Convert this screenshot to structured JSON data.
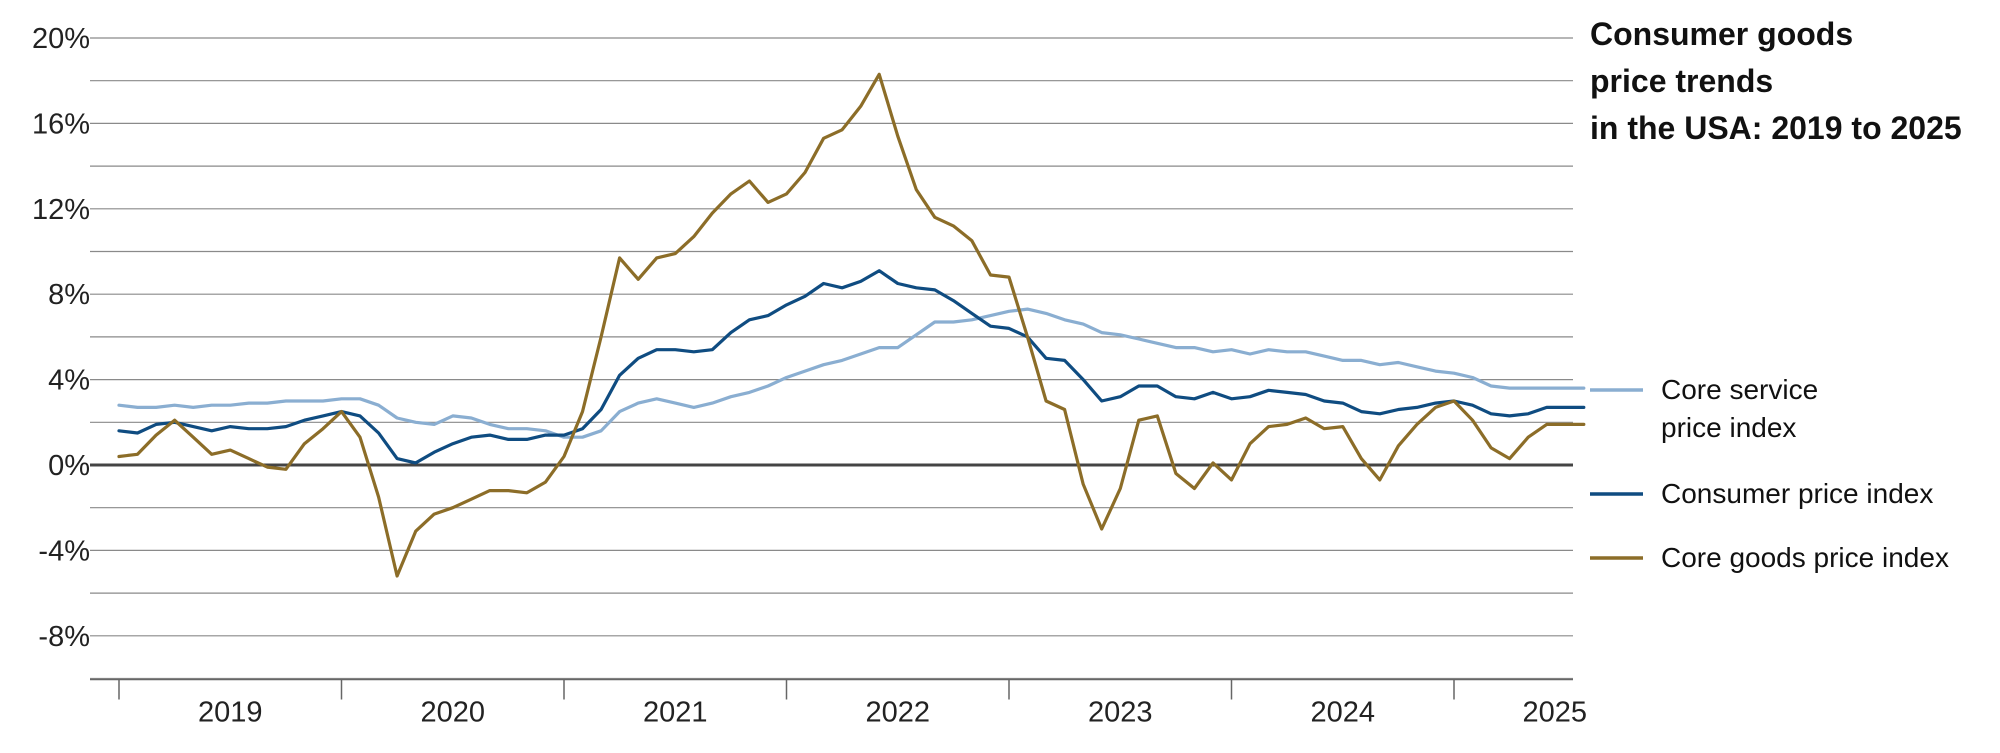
{
  "chart_data": {
    "type": "line",
    "title_lines": [
      "Consumer goods",
      "price trends",
      "in the USA: 2019 to 2025"
    ],
    "xlabel": "",
    "ylabel": "",
    "ylim": [
      -10,
      20
    ],
    "yticks": [
      20,
      16,
      12,
      8,
      4,
      0,
      -4,
      -8
    ],
    "ytick_labels": [
      "20%",
      "16%",
      "12%",
      "8%",
      "4%",
      "0%",
      "-4%",
      "-8%"
    ],
    "xticks": [
      "2019",
      "2020",
      "2021",
      "2022",
      "2023",
      "2024",
      "2025"
    ],
    "grid": true,
    "legend_position": "right",
    "x_start": "2019-01",
    "x_end": "2025-06",
    "series": [
      {
        "name": "Core service price index",
        "color": "#8aaed1",
        "values": [
          2.8,
          2.7,
          2.7,
          2.8,
          2.7,
          2.8,
          2.8,
          2.9,
          2.9,
          3.0,
          3.0,
          3.0,
          3.1,
          3.1,
          2.8,
          2.2,
          2.0,
          1.9,
          2.3,
          2.2,
          1.9,
          1.7,
          1.7,
          1.6,
          1.3,
          1.3,
          1.6,
          2.5,
          2.9,
          3.1,
          2.9,
          2.7,
          2.9,
          3.2,
          3.4,
          3.7,
          4.1,
          4.4,
          4.7,
          4.9,
          5.2,
          5.5,
          5.5,
          6.1,
          6.7,
          6.7,
          6.8,
          7.0,
          7.2,
          7.3,
          7.1,
          6.8,
          6.6,
          6.2,
          6.1,
          5.9,
          5.7,
          5.5,
          5.5,
          5.3,
          5.4,
          5.2,
          5.4,
          5.3,
          5.3,
          5.1,
          4.9,
          4.9,
          4.7,
          4.8,
          4.6,
          4.4,
          4.3,
          4.1,
          3.7,
          3.6,
          3.6,
          3.6,
          3.6,
          3.6
        ]
      },
      {
        "name": "Consumer price index",
        "color": "#0f4c81",
        "values": [
          1.6,
          1.5,
          1.9,
          2.0,
          1.8,
          1.6,
          1.8,
          1.7,
          1.7,
          1.8,
          2.1,
          2.3,
          2.5,
          2.3,
          1.5,
          0.3,
          0.1,
          0.6,
          1.0,
          1.3,
          1.4,
          1.2,
          1.2,
          1.4,
          1.4,
          1.7,
          2.6,
          4.2,
          5.0,
          5.4,
          5.4,
          5.3,
          5.4,
          6.2,
          6.8,
          7.0,
          7.5,
          7.9,
          8.5,
          8.3,
          8.6,
          9.1,
          8.5,
          8.3,
          8.2,
          7.7,
          7.1,
          6.5,
          6.4,
          6.0,
          5.0,
          4.9,
          4.0,
          3.0,
          3.2,
          3.7,
          3.7,
          3.2,
          3.1,
          3.4,
          3.1,
          3.2,
          3.5,
          3.4,
          3.3,
          3.0,
          2.9,
          2.5,
          2.4,
          2.6,
          2.7,
          2.9,
          3.0,
          2.8,
          2.4,
          2.3,
          2.4,
          2.7,
          2.7,
          2.7
        ]
      },
      {
        "name": "Core goods price index",
        "color": "#8c6d28",
        "values": [
          0.4,
          0.5,
          1.4,
          2.1,
          1.3,
          0.5,
          0.7,
          0.3,
          -0.1,
          -0.2,
          1.0,
          1.7,
          2.5,
          1.3,
          -1.5,
          -5.2,
          -3.1,
          -2.3,
          -2.0,
          -1.6,
          -1.2,
          -1.2,
          -1.3,
          -0.8,
          0.4,
          2.5,
          6.0,
          9.7,
          8.7,
          9.7,
          9.9,
          10.7,
          11.8,
          12.7,
          13.3,
          12.3,
          12.7,
          13.7,
          15.3,
          15.7,
          16.8,
          18.3,
          15.4,
          12.9,
          11.6,
          11.2,
          10.5,
          8.9,
          8.8,
          6.0,
          3.0,
          2.6,
          -0.9,
          -3.0,
          -1.1,
          2.1,
          2.3,
          -0.4,
          -1.1,
          0.1,
          -0.7,
          1.0,
          1.8,
          1.9,
          2.2,
          1.7,
          1.8,
          0.3,
          -0.7,
          0.9,
          1.9,
          2.7,
          3.0,
          2.1,
          0.8,
          0.3,
          1.3,
          1.9,
          1.9,
          1.9
        ]
      }
    ],
    "legend": [
      {
        "lines": [
          "Core service",
          "price index"
        ],
        "color": "#8aaed1"
      },
      {
        "lines": [
          "Consumer price index"
        ],
        "color": "#0f4c81"
      },
      {
        "lines": [
          "Core goods price index"
        ],
        "color": "#8c6d28"
      }
    ],
    "colors": {
      "grid": "#8a8a8a",
      "zero_line": "#444444",
      "axis": "#666666"
    }
  }
}
